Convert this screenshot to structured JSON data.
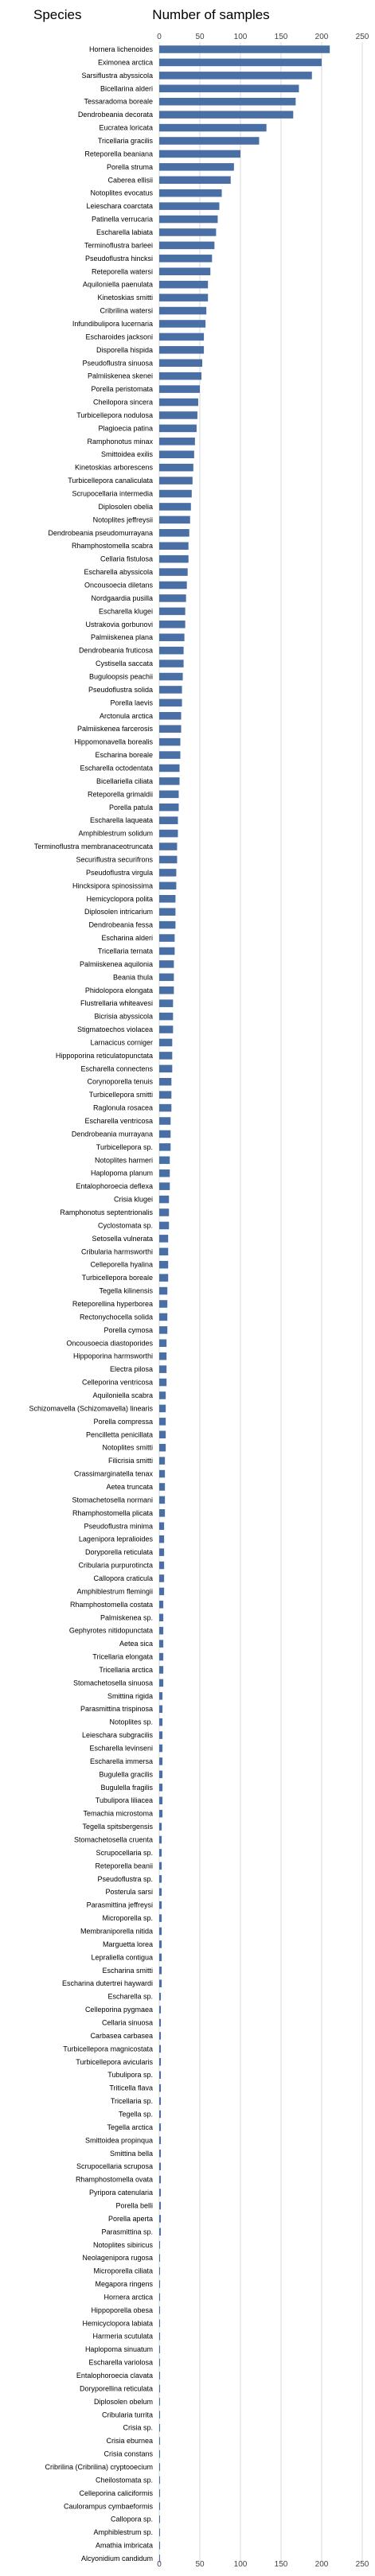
{
  "chart_data": {
    "type": "bar",
    "orientation": "horizontal",
    "category_header": "Species",
    "value_header": "Number of samples",
    "xlim": [
      0,
      250
    ],
    "xticks": [
      0,
      50,
      100,
      150,
      200,
      250
    ],
    "tick_positions": "top-and-bottom",
    "grid": true,
    "bar_color": "#4a6fa5",
    "categories": [
      "Hornera lichenoides",
      "Eximonea arctica",
      "Sarsiflustra abyssicola",
      "Bicellarina alderi",
      "Tessaradoma boreale",
      "Dendrobeania decorata",
      "Eucratea loricata",
      "Tricellaria gracilis",
      "Reteporella beaniana",
      "Porella struma",
      "Caberea ellisii",
      "Notoplites evocatus",
      "Leieschara coarctata",
      "Patinella verrucaria",
      "Escharella labiata",
      "Terminoflustra barleei",
      "Pseudoflustra hincksi",
      "Reteporella watersi",
      "Aquiloniella paenulata",
      "Kinetoskias smitti",
      "Cribrilina watersi",
      "Infundibulipora lucernaria",
      "Escharoides jacksoni",
      "Disporella hispida",
      "Pseudoflustra sinuosa",
      "Palmiiskenea skenei",
      "Porella peristomata",
      "Cheilopora sincera",
      "Turbicellepora nodulosa",
      "Plagioecia patina",
      "Ramphonotus minax",
      "Smittoidea exilis",
      "Kinetoskias arborescens",
      "Turbicellepora canaliculata",
      "Scrupocellaria intermedia",
      "Diplosolen obelia",
      "Notoplites jeffreysii",
      "Dendrobeania pseudomurrayana",
      "Rhamphostomella scabra",
      "Cellaria fistulosa",
      "Escharella abyssicola",
      "Oncousoecia diletans",
      "Nordgaardia pusilla",
      "Escharella klugei",
      "Ustrakovia gorbunovi",
      "Palmiiskenea plana",
      "Dendrobeania fruticosa",
      "Cystisella saccata",
      "Buguloopsis peachii",
      "Pseudoflustra solida",
      "Porella laevis",
      "Arctonula arctica",
      "Palmiiskenea farcerosis",
      "Hippomonavella borealis",
      "Escharina boreale",
      "Escharella octodentata",
      "Bicellariella ciliata",
      "Reteporella grimaldii",
      "Porella patula",
      "Escharella laqueata",
      "Amphiblestrum solidum",
      "Terminoflustra membranaceotruncata",
      "Securiflustra securifrons",
      "Pseudoflustra virgula",
      "Hincksipora spinosissima",
      "Hemicyclopora polita",
      "Diplosolen intricarium",
      "Dendrobeania fessa",
      "Escharina alderi",
      "Tricellaria ternata",
      "Palmiiskenea aquilonia",
      "Beania thula",
      "Phidolopora elongata",
      "Flustrellaria whiteavesi",
      "Bicrisia abyssicola",
      "Stigmatoechos violacea",
      "Larnacicus corniger",
      "Hippoporina reticulatopunctata",
      "Escharella connectens",
      "Corynoporella tenuis",
      "Turbicellepora smitti",
      "Raglonula rosacea",
      "Escharella ventricosa",
      "Dendrobeania murrayana",
      "Turbicellepora sp.",
      "Notoplites harmeri",
      "Haplopoma planum",
      "Entalophoroecia deflexa",
      "Crisia klugei",
      "Ramphonotus septentrionalis",
      "Cyclostomata sp.",
      "Setosella vulnerata",
      "Cribularia harmsworthi",
      "Celleporella hyalina",
      "Turbicellepora boreale",
      "Tegella kilinensis",
      "Reteporellina hyperborea",
      "Rectonychocella solida",
      "Porella cymosa",
      "Oncousoecia diastoporides",
      "Hippoporina harmsworthi",
      "Electra pilosa",
      "Celleporina ventricosa",
      "Aquiloniella scabra",
      "Schizomavella (Schizomavella) linearis",
      "Porella compressa",
      "Pencilletta penicillata",
      "Notoplites smitti",
      "Filicrisia smitti",
      "Crassimarginatella tenax",
      "Aetea truncata",
      "Stomachetosella normani",
      "Rhamphostomella plicata",
      "Pseudoflustra minima",
      "Lagenipora lepralioides",
      "Doryporella reticulata",
      "Cribularia purpurotincta",
      "Callopora craticula",
      "Amphiblestrum flemingii",
      "Rhamphostomella costata",
      "Palmiskenea sp.",
      "Gephyrotes nitidopunctata",
      "Aetea sica",
      "Tricellaria elongata",
      "Tricellaria arctica",
      "Stomachetosella sinuosa",
      "Smittina rigida",
      "Parasmittina trispinosa",
      "Notoplites sp.",
      "Leieschara subgracilis",
      "Escharella levinseni",
      "Escharella immersa",
      "Bugulella gracilis",
      "Bugulella fragilis",
      "Tubulipora liliacea",
      "Temachia microstoma",
      "Tegella spitsbergensis",
      "Stomachetosella cruenta",
      "Scrupocellaria sp.",
      "Reteporella beanii",
      "Pseudoflustra sp.",
      "Posterula sarsi",
      "Parasmittina jeffreysi",
      "Microporella sp.",
      "Membraniporella nitida",
      "Marguetta lorea",
      "Lepraliella contigua",
      "Escharina smitti",
      "Escharina dutertrei haywardi",
      "Escharella sp.",
      "Celleporina pygmaea",
      "Cellaria sinuosa",
      "Carbasea carbasea",
      "Turbicellepora magnicostata",
      "Turbicellepora avicularis",
      "Tubulipora sp.",
      "Triticella flava",
      "Tricellaria sp.",
      "Tegella sp.",
      "Tegella arctica",
      "Smittoidea propinqua",
      "Smittina bella",
      "Scrupocellaria scruposa",
      "Rhamphostomella ovata",
      "Pyripora catenularia",
      "Porella belli",
      "Porella aperta",
      "Parasmittina sp.",
      "Notoplites sibiricus",
      "Neolagenipora rugosa",
      "Microporella ciliata",
      "Megapora ringens",
      "Hornera arctica",
      "Hippoporella obesa",
      "Hemicyclopora labiata",
      "Harmeria scutulata",
      "Haplopoma sinuatum",
      "Escharella variolosa",
      "Entalophoroecia clavata",
      "Doryporellina reticulata",
      "Diplosolen obelum",
      "Cribularia turrita",
      "Crisia sp.",
      "Crisia eburnea",
      "Crisia constans",
      "Cribrilina (Cribrilina) cryptooecium",
      "Cheilostomata sp.",
      "Celleporina caliciformis",
      "Caulorampus cymbaeformis",
      "Callopora sp.",
      "Amphiblestrum sp.",
      "Amathia imbricata",
      "Alcyonidium candidum"
    ],
    "values": [
      210,
      200,
      188,
      172,
      168,
      165,
      132,
      123,
      100,
      92,
      88,
      77,
      74,
      72,
      70,
      68,
      65,
      63,
      60,
      60,
      58,
      57,
      55,
      55,
      53,
      52,
      50,
      48,
      47,
      46,
      44,
      43,
      42,
      41,
      40,
      39,
      38,
      37,
      36,
      36,
      35,
      34,
      33,
      32,
      32,
      31,
      30,
      30,
      29,
      28,
      28,
      27,
      27,
      26,
      26,
      25,
      25,
      24,
      24,
      23,
      23,
      22,
      22,
      21,
      21,
      20,
      20,
      20,
      19,
      19,
      18,
      18,
      18,
      17,
      17,
      17,
      16,
      16,
      16,
      15,
      15,
      15,
      14,
      14,
      14,
      13,
      13,
      13,
      12,
      12,
      12,
      11,
      11,
      11,
      11,
      10,
      10,
      10,
      10,
      9,
      9,
      9,
      9,
      8,
      8,
      8,
      8,
      8,
      7,
      7,
      7,
      7,
      7,
      6,
      6,
      6,
      6,
      6,
      6,
      5,
      5,
      5,
      5,
      5,
      5,
      5,
      4,
      4,
      4,
      4,
      4,
      4,
      4,
      4,
      4,
      4,
      3,
      3,
      3,
      3,
      3,
      3,
      3,
      3,
      3,
      3,
      3,
      3,
      3,
      2,
      2,
      2,
      2,
      2,
      2,
      2,
      2,
      2,
      2,
      2,
      2,
      2,
      2,
      2,
      2,
      2,
      2,
      2,
      1,
      1,
      1,
      1,
      1,
      1,
      1,
      1,
      1,
      1,
      1,
      1,
      1,
      1,
      1,
      1,
      1,
      1,
      1,
      1,
      1,
      1,
      1,
      1,
      1
    ]
  }
}
